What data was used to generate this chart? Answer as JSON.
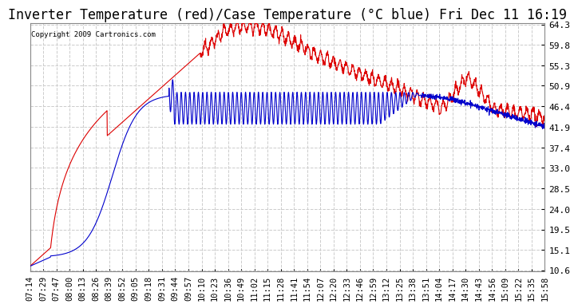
{
  "title": "Inverter Temperature (red)/Case Temperature (°C blue) Fri Dec 11 16:19",
  "copyright": "Copyright 2009 Cartronics.com",
  "y_ticks": [
    10.6,
    15.1,
    19.5,
    24.0,
    28.5,
    33.0,
    37.4,
    41.9,
    46.4,
    50.9,
    55.3,
    59.8,
    64.3
  ],
  "y_min": 10.6,
  "y_max": 64.3,
  "x_labels": [
    "07:14",
    "07:29",
    "07:47",
    "08:00",
    "08:13",
    "08:26",
    "08:39",
    "08:52",
    "09:05",
    "09:18",
    "09:31",
    "09:44",
    "09:57",
    "10:10",
    "10:23",
    "10:36",
    "10:49",
    "11:02",
    "11:15",
    "11:28",
    "11:41",
    "11:54",
    "12:07",
    "12:20",
    "12:33",
    "12:46",
    "12:59",
    "13:12",
    "13:25",
    "13:38",
    "13:51",
    "14:04",
    "14:17",
    "14:30",
    "14:43",
    "14:56",
    "15:09",
    "15:22",
    "15:35",
    "15:58"
  ],
  "bg_color": "#ffffff",
  "plot_bg_color": "#ffffff",
  "grid_color": "#cccccc",
  "red_color": "#dd0000",
  "blue_color": "#0000cc",
  "title_fontsize": 12,
  "tick_fontsize": 8
}
